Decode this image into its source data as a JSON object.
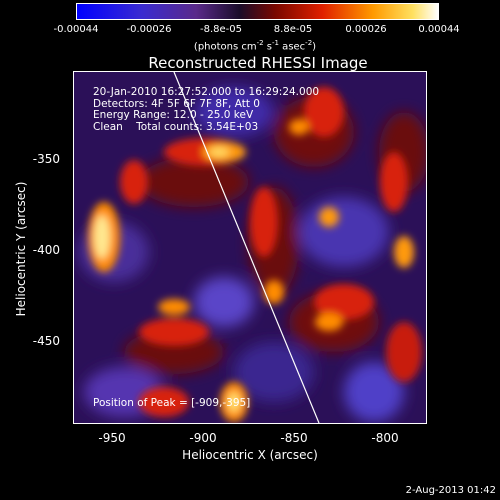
{
  "colorbar": {
    "ticks": [
      "-0.00044",
      "-0.00026",
      "-8.8e-05",
      "8.8e-05",
      "0.00026",
      "0.00044"
    ],
    "units_prefix": "(photons cm",
    "units_exp1": "-2",
    "units_mid": " s",
    "units_exp2": "-1",
    "units_mid2": " asec",
    "units_exp3": "-2",
    "units_suffix": ")"
  },
  "title": "Reconstructed RHESSI Image",
  "info": {
    "time_range": "20-Jan-2010 16:27:52.000 to 16:29:24.000",
    "detectors": "Detectors: 4F 5F 6F 7F 8F, Att 0",
    "energy": "Energy Range: 12.0 - 25.0 keV",
    "clean": "Clean    Total counts: 3.54E+03"
  },
  "peak_label": "Position of Peak = [-909,-395]",
  "x_axis": {
    "label": "Heliocentric X (arcsec)",
    "ticks": [
      "-950",
      "-900",
      "-850",
      "-800"
    ]
  },
  "y_axis": {
    "label": "Heliocentric Y (arcsec)",
    "ticks": [
      "-350",
      "-400",
      "-450"
    ]
  },
  "footer_date": "2-Aug-2013 01:42"
}
